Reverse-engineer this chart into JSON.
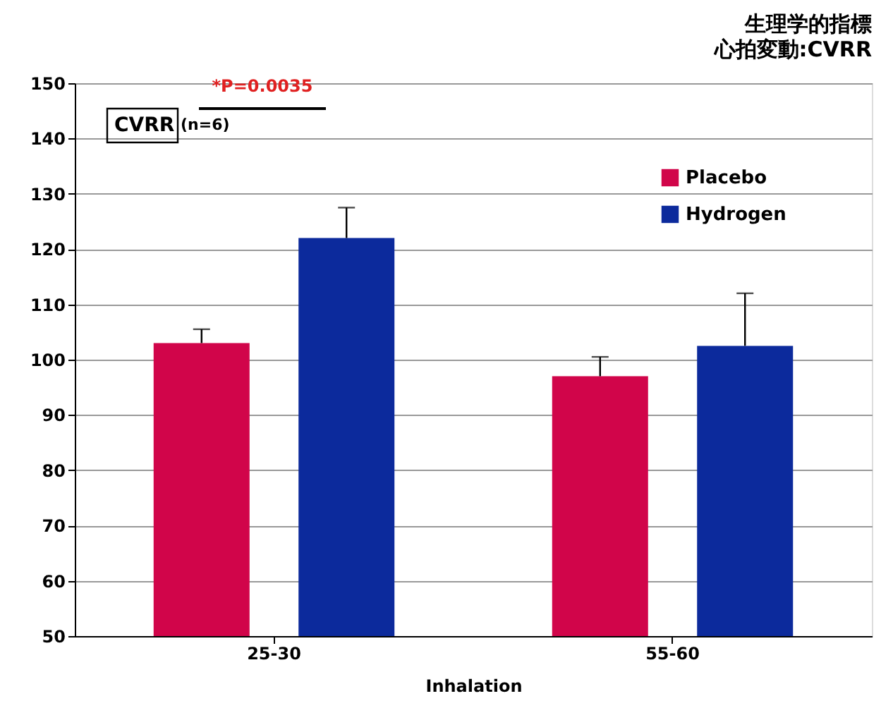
{
  "chart_data": {
    "type": "bar",
    "title": "生理学的指標",
    "subtitle": "心拍変動:CVRR",
    "xlabel": "Inhalation",
    "categories": [
      "25-30",
      "55-60"
    ],
    "series": [
      {
        "name": "Placebo",
        "color": "#d1054a",
        "values": [
          103,
          97
        ],
        "errors": [
          [
            103,
            105.5
          ],
          [
            97,
            100.5
          ]
        ]
      },
      {
        "name": "Hydrogen",
        "color": "#0c2a9c",
        "values": [
          122,
          102.5
        ],
        "errors": [
          [
            122,
            127.5
          ],
          [
            102.5,
            112
          ]
        ]
      }
    ],
    "ylim": [
      50,
      150
    ],
    "yticks": [
      50,
      60,
      70,
      80,
      90,
      100,
      110,
      120,
      130,
      140,
      150
    ],
    "annotations": [
      "CVRR",
      "(n=6)",
      "*P=0.0035"
    ],
    "grid": "y",
    "legend": "top right"
  }
}
